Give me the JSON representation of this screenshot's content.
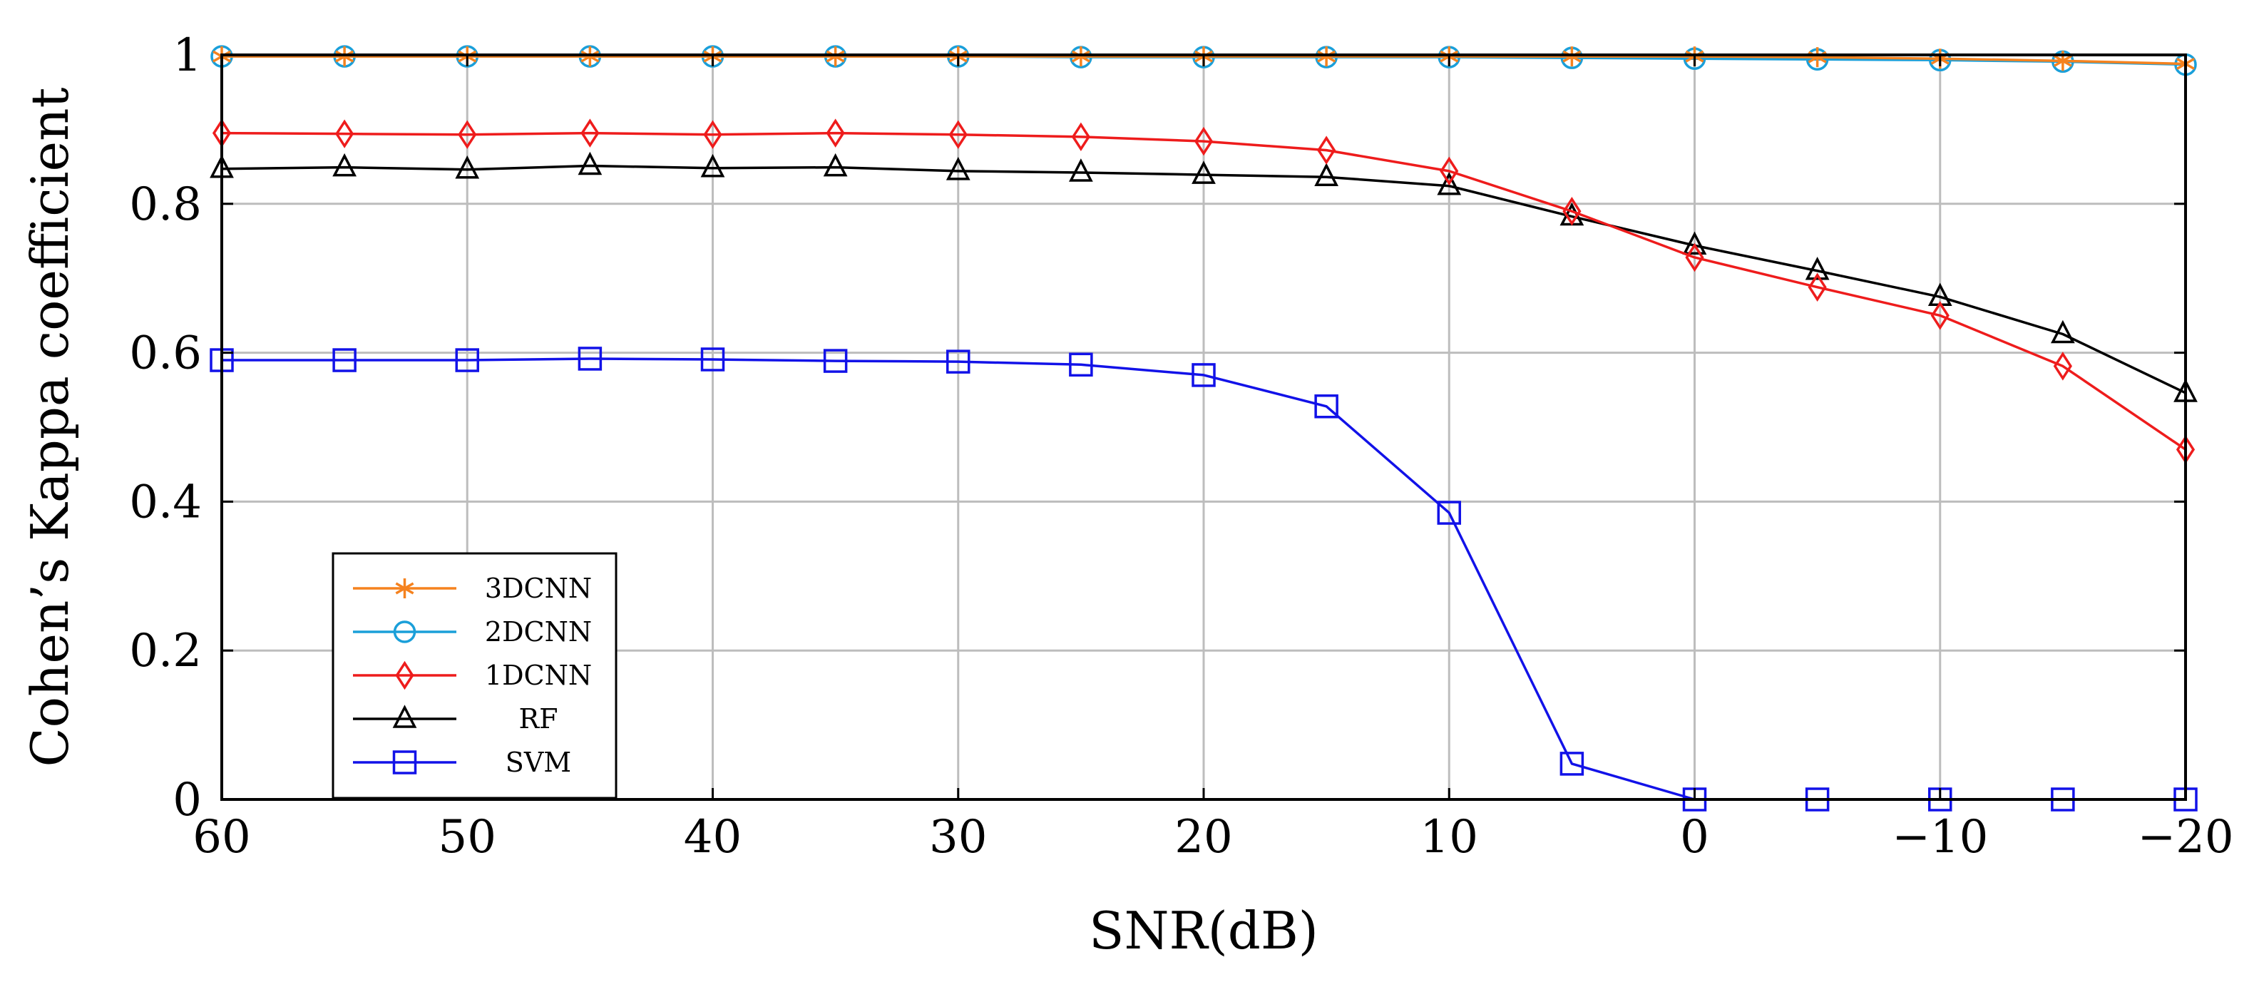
{
  "chart_data": {
    "type": "line",
    "title": "",
    "xlabel": "SNR(dB)",
    "ylabel": "Cohen’s Kappa coefficient",
    "x": [
      60,
      55,
      50,
      45,
      40,
      35,
      30,
      25,
      20,
      15,
      10,
      5,
      0,
      -5,
      -10,
      -15,
      -20
    ],
    "xlim": [
      60,
      -20
    ],
    "ylim": [
      0,
      1
    ],
    "x_ticks": [
      60,
      50,
      40,
      30,
      20,
      10,
      0,
      -10,
      -20
    ],
    "x_tick_labels": [
      "60",
      "50",
      "40",
      "30",
      "20",
      "10",
      "0",
      "−10",
      "−20"
    ],
    "y_ticks": [
      0,
      0.2,
      0.4,
      0.6,
      0.8,
      1
    ],
    "y_tick_labels": [
      "0",
      "0.2",
      "0.4",
      "0.6",
      "0.8",
      "1"
    ],
    "grid": true,
    "legend_position": "bottom-left",
    "series": [
      {
        "name": "3DCNN",
        "color": "#f5821f",
        "marker": "asterisk",
        "values": [
          0.998,
          0.998,
          0.998,
          0.998,
          0.998,
          0.998,
          0.998,
          0.998,
          0.998,
          0.998,
          0.998,
          0.998,
          0.998,
          0.997,
          0.995,
          0.992,
          0.988
        ]
      },
      {
        "name": "2DCNN",
        "color": "#1a9fd9",
        "marker": "circle",
        "values": [
          0.998,
          0.998,
          0.998,
          0.998,
          0.998,
          0.998,
          0.998,
          0.997,
          0.997,
          0.997,
          0.997,
          0.996,
          0.995,
          0.994,
          0.993,
          0.991,
          0.987
        ]
      },
      {
        "name": "1DCNN",
        "color": "#ee1c1c",
        "marker": "diamond",
        "values": [
          0.895,
          0.894,
          0.893,
          0.895,
          0.893,
          0.895,
          0.893,
          0.89,
          0.884,
          0.872,
          0.844,
          0.79,
          0.728,
          0.688,
          0.65,
          0.582,
          0.47
        ]
      },
      {
        "name": "RF",
        "color": "#000000",
        "marker": "triangle",
        "values": [
          0.847,
          0.849,
          0.846,
          0.851,
          0.848,
          0.849,
          0.844,
          0.842,
          0.839,
          0.836,
          0.824,
          0.783,
          0.744,
          0.71,
          0.675,
          0.625,
          0.546
        ]
      },
      {
        "name": "SVM",
        "color": "#1212e8",
        "marker": "square",
        "values": [
          0.59,
          0.59,
          0.59,
          0.592,
          0.591,
          0.589,
          0.588,
          0.584,
          0.57,
          0.528,
          0.385,
          0.048,
          0.0,
          0.0,
          0.0,
          0.0,
          0.0
        ]
      }
    ]
  }
}
